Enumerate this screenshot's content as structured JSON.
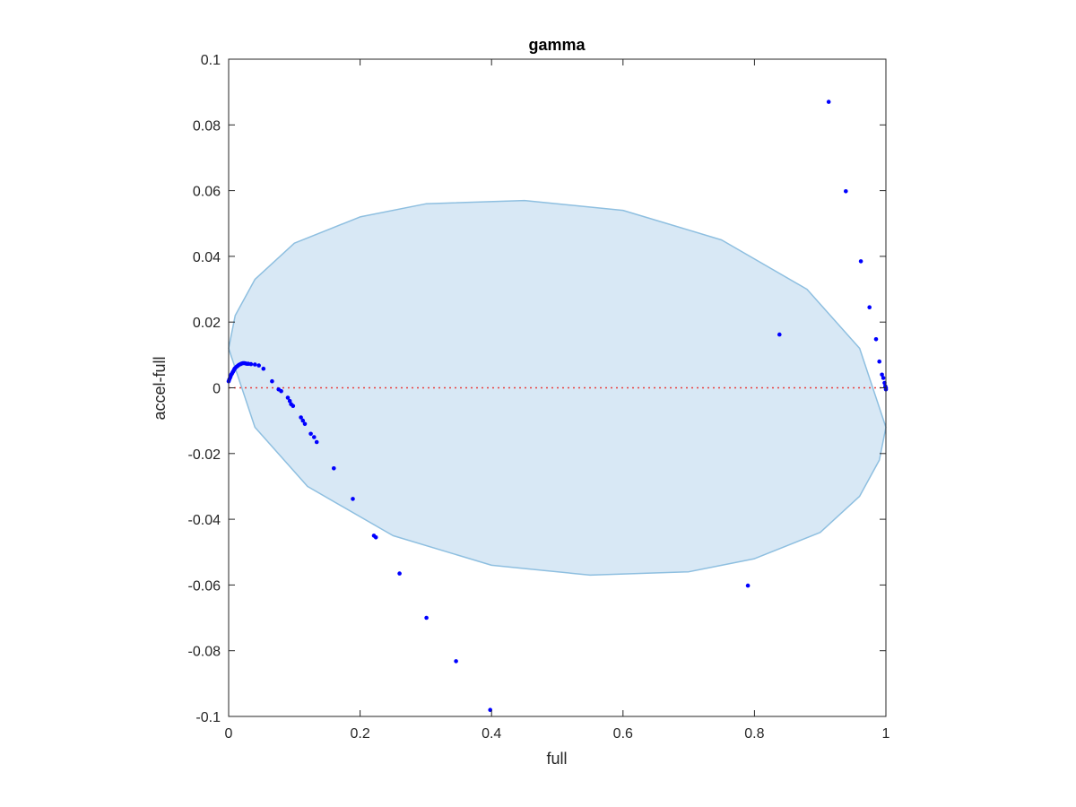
{
  "chart_data": {
    "type": "scatter",
    "title": "gamma",
    "xlabel": "full",
    "ylabel": "accel-full",
    "xlim": [
      0,
      1
    ],
    "ylim": [
      -0.1,
      0.1
    ],
    "xticks": [
      "0",
      "0.2",
      "0.4",
      "0.6",
      "0.8",
      "1"
    ],
    "yticks": [
      "-0.1",
      "-0.08",
      "-0.06",
      "-0.04",
      "-0.02",
      "0",
      "0.02",
      "0.04",
      "0.06",
      "0.08",
      "0.1"
    ],
    "grid": false,
    "reference_line": {
      "y": 0,
      "style": "dotted",
      "color": "#e8403f"
    },
    "ellipse": {
      "boundary": [
        [
          0.0,
          0.012
        ],
        [
          0.01,
          0.022
        ],
        [
          0.04,
          0.033
        ],
        [
          0.1,
          0.044
        ],
        [
          0.2,
          0.052
        ],
        [
          0.3,
          0.056
        ],
        [
          0.45,
          0.057
        ],
        [
          0.6,
          0.054
        ],
        [
          0.75,
          0.045
        ],
        [
          0.88,
          0.03
        ],
        [
          0.96,
          0.012
        ],
        [
          1.0,
          -0.012
        ],
        [
          0.99,
          -0.022
        ],
        [
          0.96,
          -0.033
        ],
        [
          0.9,
          -0.044
        ],
        [
          0.8,
          -0.052
        ],
        [
          0.7,
          -0.056
        ],
        [
          0.55,
          -0.057
        ],
        [
          0.4,
          -0.054
        ],
        [
          0.25,
          -0.045
        ],
        [
          0.12,
          -0.03
        ],
        [
          0.04,
          -0.012
        ],
        [
          0.0,
          0.012
        ]
      ],
      "fill": "#d8e8f5",
      "stroke": "#8ebfe0"
    },
    "points": {
      "color": "#0000ff",
      "x": [
        0.0,
        0.001,
        0.002,
        0.003,
        0.004,
        0.005,
        0.006,
        0.007,
        0.008,
        0.009,
        0.01,
        0.012,
        0.014,
        0.016,
        0.018,
        0.02,
        0.022,
        0.024,
        0.026,
        0.028,
        0.03,
        0.034,
        0.04,
        0.046,
        0.053,
        0.066,
        0.076,
        0.08,
        0.09,
        0.093,
        0.095,
        0.098,
        0.11,
        0.113,
        0.116,
        0.125,
        0.13,
        0.134,
        0.16,
        0.189,
        0.221,
        0.224,
        0.26,
        0.301,
        0.346,
        0.398,
        0.79,
        0.838,
        0.913,
        0.939,
        0.962,
        0.975,
        0.985,
        0.99,
        0.994,
        0.996,
        0.998,
        0.999,
        1.0,
        1.0
      ],
      "y": [
        0.002,
        0.0025,
        0.003,
        0.0035,
        0.004,
        0.0043,
        0.0047,
        0.005,
        0.0054,
        0.0058,
        0.006,
        0.0064,
        0.0067,
        0.007,
        0.0072,
        0.0074,
        0.0075,
        0.0075,
        0.0074,
        0.0073,
        0.0073,
        0.0072,
        0.0071,
        0.0068,
        0.0058,
        0.002,
        -0.0005,
        -0.001,
        -0.003,
        -0.004,
        -0.005,
        -0.0055,
        -0.009,
        -0.01,
        -0.011,
        -0.014,
        -0.015,
        -0.0165,
        -0.0245,
        -0.0338,
        -0.045,
        -0.0455,
        -0.0565,
        -0.07,
        -0.0832,
        -0.098,
        -0.0602,
        0.0162,
        0.087,
        0.0598,
        0.0385,
        0.0245,
        0.0148,
        0.008,
        0.004,
        0.003,
        0.0015,
        0.0005,
        0.0,
        -0.0005
      ]
    }
  }
}
